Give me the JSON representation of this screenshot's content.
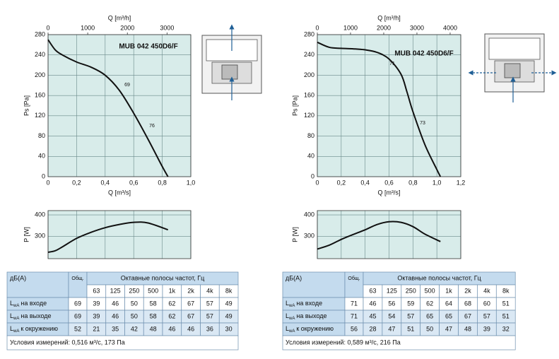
{
  "chart_data": [
    {
      "type": "line",
      "title": "MUB 042 450D6/F",
      "annotations": [
        "69",
        "76"
      ],
      "xlabel": "Q [m³/s]",
      "x2label": "Q [m³/h]",
      "ylabel": "Ps [Pa]",
      "xlim": [
        0,
        1.0
      ],
      "xticks": [
        0,
        {
          "value": 0.2,
          "label": "0,2"
        },
        {
          "value": 0.4,
          "label": "0,4"
        },
        {
          "value": 0.6,
          "label": "0,6"
        },
        {
          "value": 0.8,
          "label": "0,8"
        },
        {
          "value": 1.0,
          "label": "1,0"
        }
      ],
      "x2lim": [
        0,
        3600
      ],
      "x2ticks": [
        0,
        1000,
        2000,
        3000
      ],
      "ylim": [
        0,
        280
      ],
      "yticks": [
        0,
        40,
        80,
        120,
        160,
        200,
        240,
        280
      ],
      "grid": true,
      "series": [
        {
          "color": "#111111",
          "x": [
            0,
            0.05,
            0.1,
            0.2,
            0.3,
            0.4,
            0.5,
            0.6,
            0.7,
            0.8,
            0.84
          ],
          "values": [
            270,
            250,
            240,
            226,
            216,
            200,
            170,
            125,
            74,
            20,
            0
          ]
        }
      ]
    },
    {
      "type": "line",
      "ylabel": "P [W]",
      "xlim": [
        0,
        1.0
      ],
      "ylim": [
        195,
        420
      ],
      "yticks": [
        300,
        400
      ],
      "grid": true,
      "series": [
        {
          "color": "#111111",
          "x": [
            0,
            0.05,
            0.1,
            0.2,
            0.3,
            0.4,
            0.5,
            0.6,
            0.7,
            0.84
          ],
          "values": [
            225,
            232,
            250,
            290,
            318,
            340,
            355,
            365,
            362,
            330
          ]
        }
      ]
    },
    {
      "type": "line",
      "title": "MUB 042 450D6/F",
      "annotations": [
        "71",
        "73"
      ],
      "xlabel": "Q [m³/s]",
      "x2label": "Q [m³/h]",
      "ylabel": "Ps [Pa]",
      "xlim": [
        0,
        1.2
      ],
      "xticks": [
        0,
        {
          "value": 0.2,
          "label": "0,2"
        },
        {
          "value": 0.4,
          "label": "0,4"
        },
        {
          "value": 0.6,
          "label": "0,6"
        },
        {
          "value": 0.8,
          "label": "0,8"
        },
        {
          "value": 1.0,
          "label": "1,0"
        },
        {
          "value": 1.2,
          "label": "1,2"
        }
      ],
      "x2lim": [
        0,
        4320
      ],
      "x2ticks": [
        0,
        1000,
        2000,
        3000,
        4000
      ],
      "ylim": [
        0,
        280
      ],
      "yticks": [
        0,
        40,
        80,
        120,
        160,
        200,
        240,
        280
      ],
      "grid": true,
      "series": [
        {
          "color": "#111111",
          "x": [
            0,
            0.1,
            0.2,
            0.3,
            0.4,
            0.5,
            0.6,
            0.7,
            0.75,
            0.8,
            0.9,
            1.0,
            1.03
          ],
          "values": [
            265,
            255,
            253,
            252,
            250,
            245,
            232,
            202,
            167,
            128,
            63,
            14,
            0
          ]
        }
      ]
    },
    {
      "type": "line",
      "ylabel": "P [W]",
      "xlim": [
        0,
        1.2
      ],
      "ylim": [
        195,
        420
      ],
      "yticks": [
        300,
        400
      ],
      "grid": true,
      "series": [
        {
          "color": "#111111",
          "x": [
            0,
            0.1,
            0.2,
            0.3,
            0.4,
            0.5,
            0.6,
            0.7,
            0.8,
            0.9,
            1.03
          ],
          "values": [
            240,
            258,
            285,
            308,
            330,
            355,
            368,
            365,
            345,
            310,
            275
          ]
        }
      ]
    }
  ],
  "tables": [
    {
      "header": {
        "label": "дБ(А)",
        "total": "Общ.",
        "bands_title": "Октавные полосы частот, Гц"
      },
      "bands": [
        63,
        125,
        250,
        500,
        "1k",
        "2k",
        "4k",
        "8k"
      ],
      "rows": [
        {
          "sym": "L",
          "sub": "wA",
          "label": "на входе",
          "total": 69,
          "values": [
            39,
            46,
            50,
            58,
            62,
            67,
            57,
            49
          ]
        },
        {
          "sym": "L",
          "sub": "wA",
          "label": "на выходе",
          "total": 69,
          "values": [
            39,
            46,
            50,
            58,
            62,
            67,
            57,
            49
          ]
        },
        {
          "sym": "L",
          "sub": "wA",
          "label": "к окружению",
          "total": 52,
          "values": [
            21,
            35,
            42,
            48,
            46,
            46,
            36,
            30
          ]
        }
      ],
      "conditions": "Условия измерений: 0,516 м³/с, 173 Па"
    },
    {
      "header": {
        "label": "дБ(А)",
        "total": "Общ.",
        "bands_title": "Октавные полосы частот, Гц"
      },
      "bands": [
        63,
        125,
        250,
        500,
        "1k",
        "2k",
        "4k",
        "8k"
      ],
      "rows": [
        {
          "sym": "L",
          "sub": "wA",
          "label": "на входе",
          "total": 71,
          "values": [
            46,
            56,
            59,
            62,
            64,
            68,
            60,
            51
          ]
        },
        {
          "sym": "L",
          "sub": "wA",
          "label": "на выходе",
          "total": 71,
          "values": [
            45,
            54,
            57,
            65,
            65,
            67,
            57,
            51
          ]
        },
        {
          "sym": "L",
          "sub": "wA",
          "label": "к окружению",
          "total": 56,
          "values": [
            28,
            47,
            51,
            50,
            47,
            48,
            39,
            32
          ]
        }
      ],
      "conditions": "Условия измерений: 0,589 м³/с, 216 Па"
    }
  ]
}
